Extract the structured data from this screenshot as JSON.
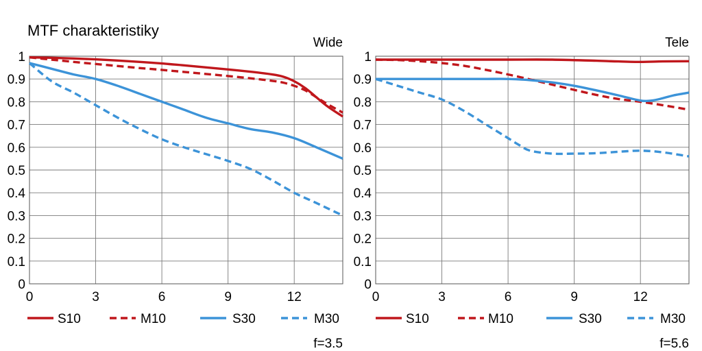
{
  "title": "MTF charakteristiky",
  "colors": {
    "s10": "#c0171c",
    "m10": "#c0171c",
    "s30": "#3c93d8",
    "m30": "#3c93d8",
    "grid": "#7a7a7a"
  },
  "legend_items": [
    {
      "name": "S10",
      "color": "#c0171c",
      "dash": false
    },
    {
      "name": "M10",
      "color": "#c0171c",
      "dash": true
    },
    {
      "name": "S30",
      "color": "#3c93d8",
      "dash": false
    },
    {
      "name": "M30",
      "color": "#3c93d8",
      "dash": true
    }
  ],
  "chart_data": [
    {
      "type": "line",
      "subtitle": "Wide",
      "footnote": "f=3.5",
      "xlim": [
        0,
        14.2
      ],
      "ylim": [
        0,
        1
      ],
      "x_ticks": [
        0,
        3,
        6,
        9,
        12
      ],
      "x_tick_labels": [
        "0",
        "3",
        "6",
        "9",
        "12"
      ],
      "y_ticks": [
        0,
        0.1,
        0.2,
        0.3,
        0.4,
        0.5,
        0.6,
        0.7,
        0.8,
        0.9,
        1
      ],
      "y_tick_labels": [
        "0",
        "0.1",
        "0.2",
        "0.3",
        "0.4",
        "0.5",
        "0.6",
        "0.7",
        "0.8",
        "0.9",
        "1"
      ],
      "grid": true,
      "series": [
        {
          "name": "S10",
          "x": [
            0,
            1,
            2,
            3,
            4,
            5,
            6,
            7,
            8,
            9,
            10,
            11,
            11.5,
            12,
            12.5,
            13,
            13.5,
            14.2
          ],
          "y": [
            0.995,
            0.993,
            0.99,
            0.986,
            0.981,
            0.975,
            0.968,
            0.96,
            0.951,
            0.942,
            0.932,
            0.92,
            0.91,
            0.89,
            0.86,
            0.82,
            0.78,
            0.735
          ]
        },
        {
          "name": "M10",
          "x": [
            0,
            1,
            2,
            3,
            4,
            5,
            6,
            7,
            8,
            9,
            10,
            11,
            11.5,
            12,
            12.5,
            13,
            13.5,
            14.2
          ],
          "y": [
            0.995,
            0.985,
            0.975,
            0.966,
            0.957,
            0.948,
            0.94,
            0.931,
            0.922,
            0.913,
            0.903,
            0.892,
            0.884,
            0.87,
            0.85,
            0.82,
            0.79,
            0.752
          ]
        },
        {
          "name": "S30",
          "x": [
            0,
            1,
            2,
            3,
            4,
            5,
            6,
            7,
            8,
            9,
            10,
            11,
            12,
            13,
            14.2
          ],
          "y": [
            0.97,
            0.945,
            0.92,
            0.9,
            0.87,
            0.835,
            0.8,
            0.765,
            0.73,
            0.705,
            0.68,
            0.665,
            0.64,
            0.6,
            0.55
          ]
        },
        {
          "name": "M30",
          "x": [
            0,
            1,
            2,
            3,
            4,
            5,
            6,
            7,
            8,
            9,
            10,
            11,
            12,
            13,
            14.2
          ],
          "y": [
            0.97,
            0.89,
            0.84,
            0.785,
            0.73,
            0.68,
            0.635,
            0.6,
            0.57,
            0.54,
            0.505,
            0.455,
            0.4,
            0.355,
            0.3
          ]
        }
      ]
    },
    {
      "type": "line",
      "subtitle": "Tele",
      "footnote": "f=5.6",
      "xlim": [
        0,
        14.2
      ],
      "ylim": [
        0,
        1
      ],
      "x_ticks": [
        0,
        3,
        6,
        9,
        12
      ],
      "x_tick_labels": [
        "0",
        "3",
        "6",
        "9",
        "12"
      ],
      "y_ticks": [
        0,
        0.1,
        0.2,
        0.3,
        0.4,
        0.5,
        0.6,
        0.7,
        0.8,
        0.9,
        1
      ],
      "y_tick_labels": [
        "0",
        "0.1",
        "0.2",
        "0.3",
        "0.4",
        "0.5",
        "0.6",
        "0.7",
        "0.8",
        "0.9",
        "1"
      ],
      "grid": true,
      "series": [
        {
          "name": "S10",
          "x": [
            0,
            2,
            4,
            6,
            8,
            10,
            11,
            12,
            13,
            14.2
          ],
          "y": [
            0.985,
            0.985,
            0.985,
            0.985,
            0.985,
            0.98,
            0.977,
            0.975,
            0.977,
            0.978
          ]
        },
        {
          "name": "M10",
          "x": [
            0,
            1,
            2,
            3,
            4,
            5,
            6,
            7,
            8,
            9,
            10,
            11,
            12,
            13,
            14.2
          ],
          "y": [
            0.985,
            0.983,
            0.978,
            0.97,
            0.958,
            0.94,
            0.92,
            0.898,
            0.875,
            0.852,
            0.83,
            0.812,
            0.8,
            0.785,
            0.765
          ]
        },
        {
          "name": "S30",
          "x": [
            0,
            1,
            2,
            3,
            4,
            5,
            6,
            7,
            8,
            9,
            10,
            11,
            12,
            12.5,
            13,
            13.5,
            14.2
          ],
          "y": [
            0.9,
            0.9,
            0.9,
            0.9,
            0.9,
            0.9,
            0.9,
            0.895,
            0.885,
            0.87,
            0.85,
            0.828,
            0.805,
            0.805,
            0.815,
            0.828,
            0.84
          ]
        },
        {
          "name": "M30",
          "x": [
            0,
            1,
            2,
            3,
            4,
            5,
            6,
            6.5,
            7,
            8,
            9,
            10,
            11,
            12,
            13,
            14.2
          ],
          "y": [
            0.9,
            0.87,
            0.84,
            0.81,
            0.76,
            0.7,
            0.64,
            0.61,
            0.585,
            0.572,
            0.572,
            0.574,
            0.58,
            0.585,
            0.578,
            0.56
          ]
        }
      ]
    }
  ]
}
